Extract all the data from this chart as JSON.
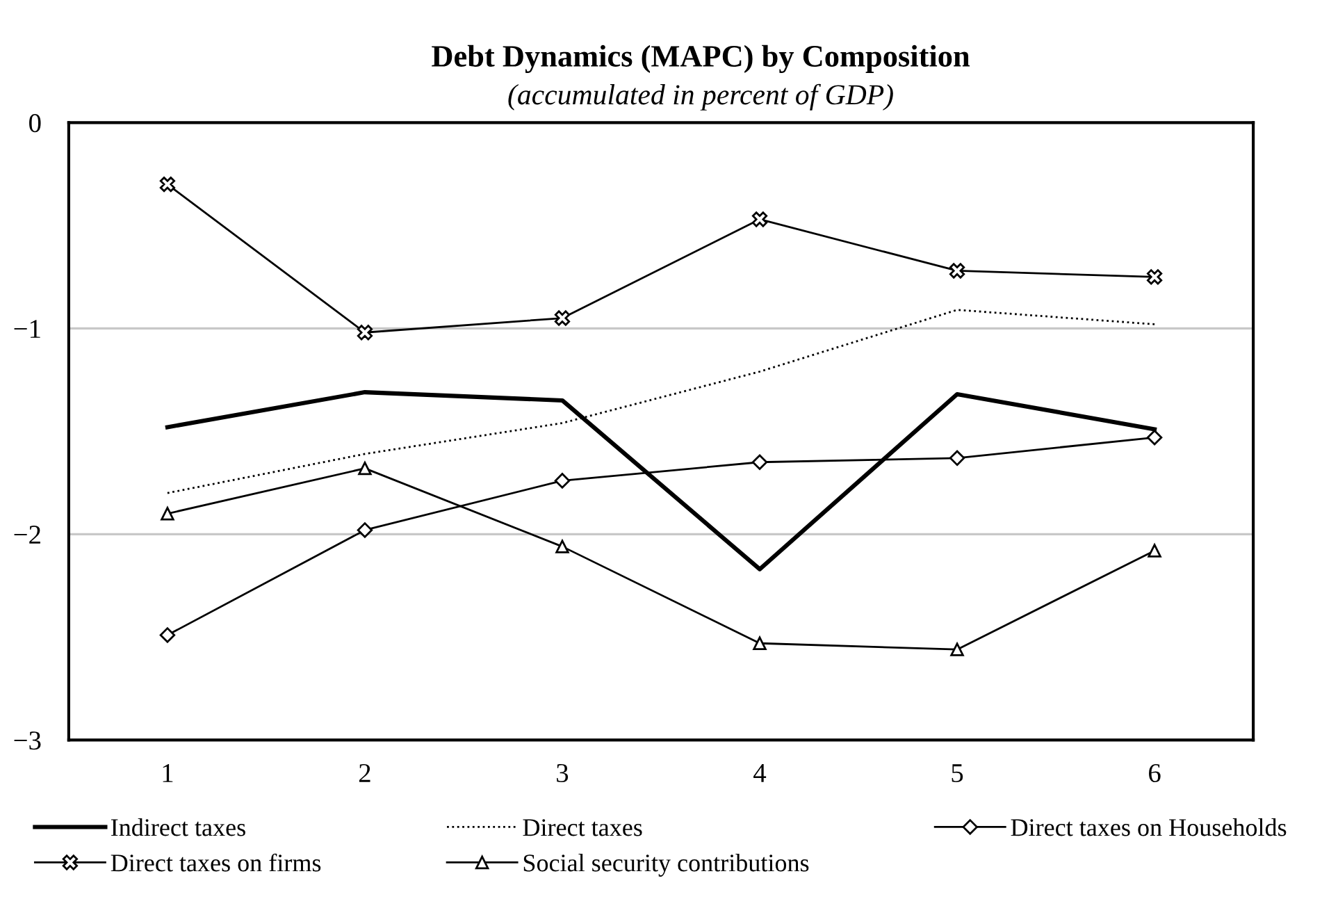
{
  "chart_data": {
    "type": "line",
    "title": "Debt Dynamics (MAPC) by Composition",
    "subtitle": "(accumulated in percent of GDP)",
    "categories": [
      "1",
      "2",
      "3",
      "4",
      "5",
      "6"
    ],
    "ylim": [
      -3,
      0
    ],
    "yticks": [
      {
        "value": -3,
        "label": "−3"
      },
      {
        "value": -2,
        "label": "−2"
      },
      {
        "value": -1,
        "label": "−1"
      },
      0
    ],
    "grid": "y",
    "legend": "bottom",
    "series": [
      {
        "name": "Indirect taxes",
        "color": "#000000",
        "line_style": "solid",
        "marker": "none",
        "values": [
          -1.48,
          -1.31,
          -1.35,
          -2.17,
          -1.32,
          -1.49
        ]
      },
      {
        "name": "Direct taxes",
        "color": "#000000",
        "line_style": "dotted",
        "marker": "none",
        "values": [
          -1.8,
          -1.61,
          -1.46,
          -1.21,
          -0.91,
          -0.98
        ]
      },
      {
        "name": "Direct taxes on Households",
        "color": "#000000",
        "line_style": "solid",
        "marker": "diamond",
        "values": [
          -2.49,
          -1.98,
          -1.74,
          -1.65,
          -1.63,
          -1.53
        ]
      },
      {
        "name": "Direct taxes on firms",
        "color": "#000000",
        "line_style": "solid",
        "marker": "cross",
        "values": [
          -0.3,
          -1.02,
          -0.95,
          -0.47,
          -0.72,
          -0.75
        ]
      },
      {
        "name": "Social security contributions",
        "color": "#000000",
        "line_style": "solid",
        "marker": "triangle",
        "values": [
          -1.9,
          -1.68,
          -2.06,
          -2.53,
          -2.56,
          -2.08
        ]
      }
    ]
  }
}
